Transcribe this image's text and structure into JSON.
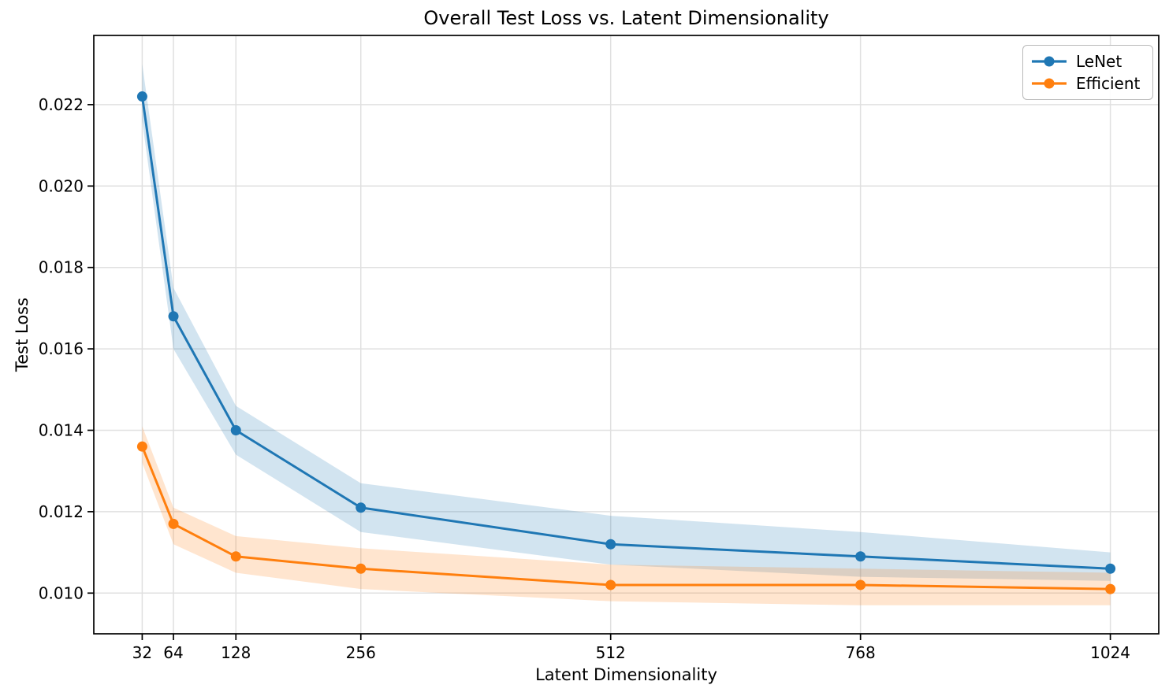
{
  "chart_data": {
    "type": "line",
    "title": "Overall Test Loss vs. Latent Dimensionality",
    "xlabel": "Latent Dimensionality",
    "ylabel": "Test Loss",
    "x": [
      32,
      64,
      128,
      256,
      512,
      768,
      1024
    ],
    "series": [
      {
        "name": "LeNet",
        "color": "#1f77b4",
        "values": [
          0.0222,
          0.0168,
          0.014,
          0.0121,
          0.0112,
          0.0109,
          0.0106
        ],
        "band_upper": [
          0.023,
          0.0175,
          0.0146,
          0.0127,
          0.0119,
          0.0115,
          0.011
        ],
        "band_lower": [
          0.0216,
          0.016,
          0.0134,
          0.0115,
          0.0107,
          0.0104,
          0.0103
        ]
      },
      {
        "name": "Efficient",
        "color": "#ff7f0e",
        "values": [
          0.0136,
          0.0117,
          0.0109,
          0.0106,
          0.0102,
          0.0102,
          0.0101
        ],
        "band_upper": [
          0.0141,
          0.0121,
          0.0114,
          0.0111,
          0.0107,
          0.0106,
          0.0105
        ],
        "band_lower": [
          0.0132,
          0.0112,
          0.0105,
          0.0101,
          0.0098,
          0.0097,
          0.0097
        ]
      }
    ],
    "xticks": {
      "values": [
        32,
        64,
        128,
        256,
        512,
        768,
        1024
      ],
      "labels": [
        "32",
        "64",
        "128",
        "256",
        "512",
        "768",
        "1024"
      ]
    },
    "yticks": {
      "values": [
        0.01,
        0.012,
        0.014,
        0.016,
        0.018,
        0.02,
        0.022
      ],
      "labels": [
        "0.010",
        "0.012",
        "0.014",
        "0.016",
        "0.018",
        "0.020",
        "0.022"
      ]
    },
    "xlim": [
      -17.6,
      1073.6
    ],
    "ylim": [
      0.009,
      0.0237
    ],
    "grid": true,
    "band_opacity": 0.2,
    "legend": {
      "position": "upper right",
      "entries": [
        "LeNet",
        "Efficient"
      ]
    }
  }
}
